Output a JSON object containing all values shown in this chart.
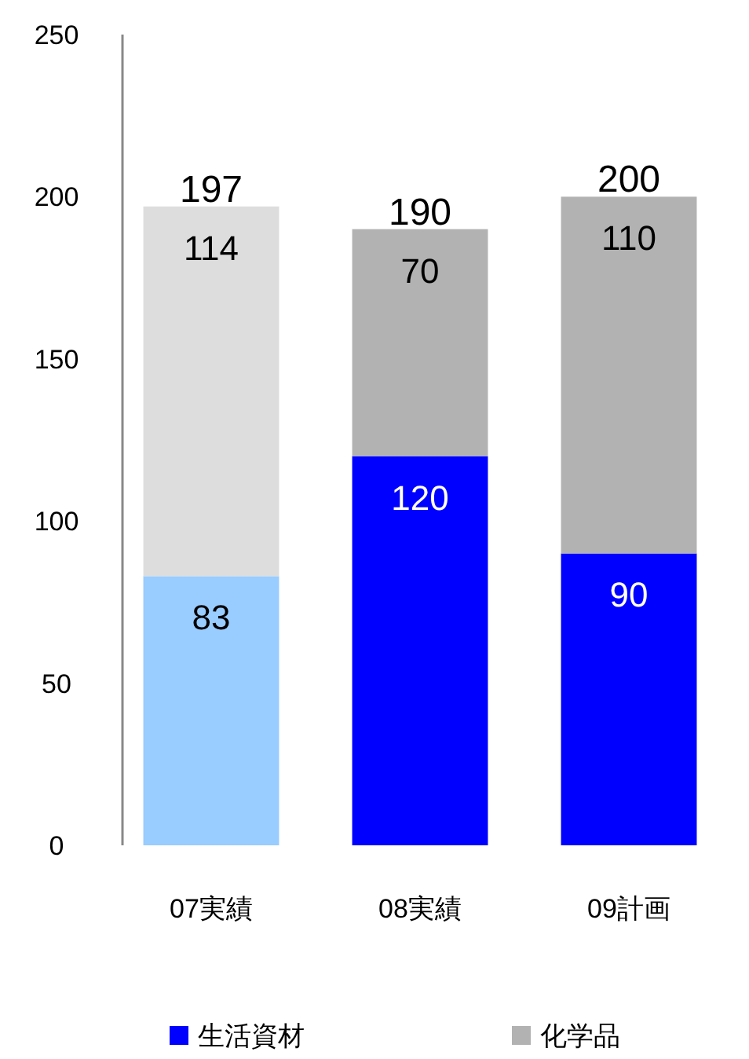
{
  "chart_data": {
    "type": "bar",
    "stacked": true,
    "categories": [
      "07実績",
      "08実績",
      "09計画"
    ],
    "series": [
      {
        "name": "生活資材",
        "color": "#0000ff",
        "colors": [
          "#99ccff",
          "#0000ff",
          "#0000ff"
        ],
        "values": [
          83,
          120,
          90
        ]
      },
      {
        "name": "化学品",
        "color": "#b2b2b2",
        "colors": [
          "#dddddd",
          "#b2b2b2",
          "#b2b2b2"
        ],
        "values": [
          114,
          70,
          110
        ]
      }
    ],
    "totals": [
      "197",
      "190",
      "200"
    ],
    "data_labels": true,
    "ylim": [
      0,
      250
    ],
    "yticks": [
      0,
      50,
      100,
      150,
      200,
      250
    ],
    "grid": false,
    "legend": "bottom"
  }
}
